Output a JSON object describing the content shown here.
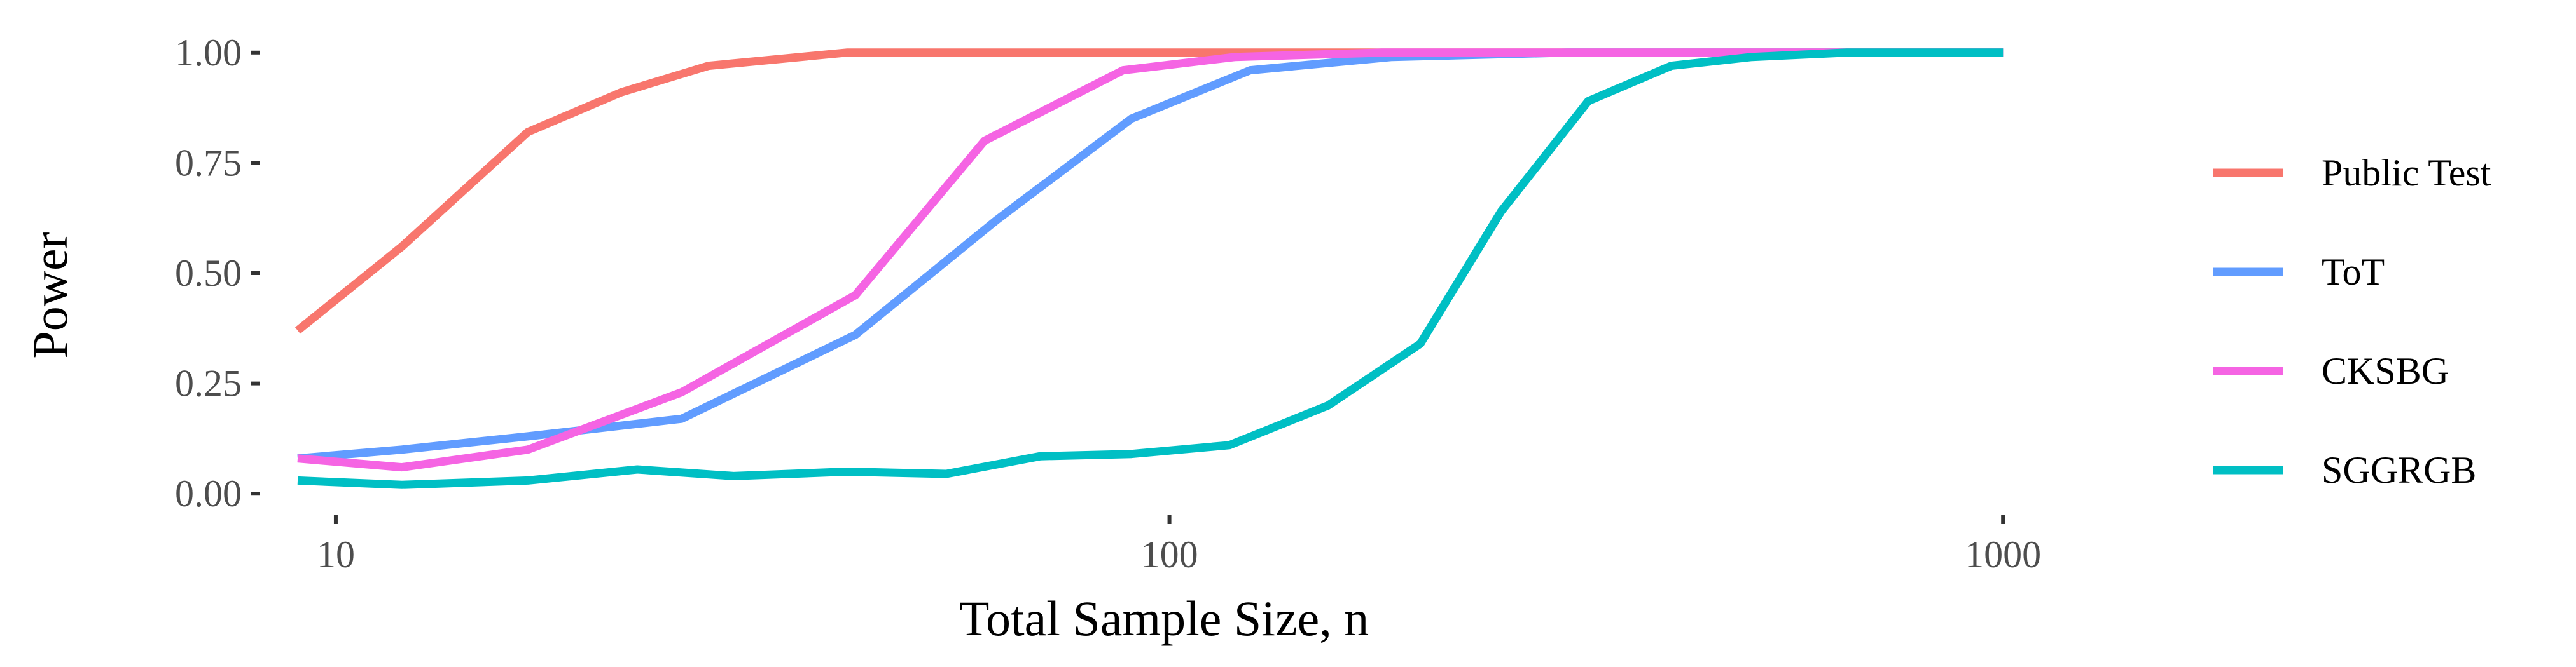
{
  "chart_data": {
    "type": "line",
    "title": "",
    "xlabel": "Total Sample Size, n",
    "ylabel": "Power",
    "x_scale": "log10",
    "xlim": [
      8.2,
      1350
    ],
    "ylim": [
      -0.04,
      1.04
    ],
    "grid": false,
    "legend_position": "right",
    "x_ticks": [
      {
        "value": 10,
        "label": "10"
      },
      {
        "value": 100,
        "label": "100"
      },
      {
        "value": 1000,
        "label": "1000"
      }
    ],
    "y_ticks": [
      {
        "value": 0.0,
        "label": "0.00"
      },
      {
        "value": 0.25,
        "label": "0.25"
      },
      {
        "value": 0.5,
        "label": "0.50"
      },
      {
        "value": 0.75,
        "label": "0.75"
      },
      {
        "value": 1.0,
        "label": "1.00"
      }
    ],
    "series": [
      {
        "name": "Public Test",
        "color": "#F8766D",
        "points": [
          [
            9,
            0.37
          ],
          [
            12,
            0.56
          ],
          [
            17,
            0.82
          ],
          [
            22,
            0.91
          ],
          [
            28,
            0.97
          ],
          [
            41,
            1.0
          ],
          [
            61,
            1.0
          ],
          [
            100,
            1.0
          ],
          [
            1000,
            1.0
          ]
        ]
      },
      {
        "name": "ToT",
        "color": "#619CFF",
        "points": [
          [
            9,
            0.08
          ],
          [
            12,
            0.1
          ],
          [
            17,
            0.13
          ],
          [
            26,
            0.17
          ],
          [
            42,
            0.36
          ],
          [
            62,
            0.62
          ],
          [
            90,
            0.85
          ],
          [
            125,
            0.96
          ],
          [
            185,
            0.99
          ],
          [
            300,
            1.0
          ],
          [
            1000,
            1.0
          ]
        ]
      },
      {
        "name": "CKSBG",
        "color": "#F564E3",
        "points": [
          [
            9,
            0.08
          ],
          [
            12,
            0.06
          ],
          [
            17,
            0.1
          ],
          [
            26,
            0.23
          ],
          [
            42,
            0.45
          ],
          [
            60,
            0.8
          ],
          [
            88,
            0.96
          ],
          [
            120,
            0.99
          ],
          [
            180,
            1.0
          ],
          [
            1000,
            1.0
          ]
        ]
      },
      {
        "name": "SGGRGB",
        "color": "#00BFC4",
        "points": [
          [
            9,
            0.03
          ],
          [
            12,
            0.02
          ],
          [
            17,
            0.03
          ],
          [
            23,
            0.055
          ],
          [
            30,
            0.04
          ],
          [
            41,
            0.05
          ],
          [
            54,
            0.045
          ],
          [
            70,
            0.085
          ],
          [
            90,
            0.09
          ],
          [
            118,
            0.11
          ],
          [
            155,
            0.2
          ],
          [
            200,
            0.34
          ],
          [
            250,
            0.64
          ],
          [
            318,
            0.89
          ],
          [
            400,
            0.97
          ],
          [
            500,
            0.99
          ],
          [
            650,
            1.0
          ],
          [
            1000,
            1.0
          ]
        ]
      }
    ]
  }
}
